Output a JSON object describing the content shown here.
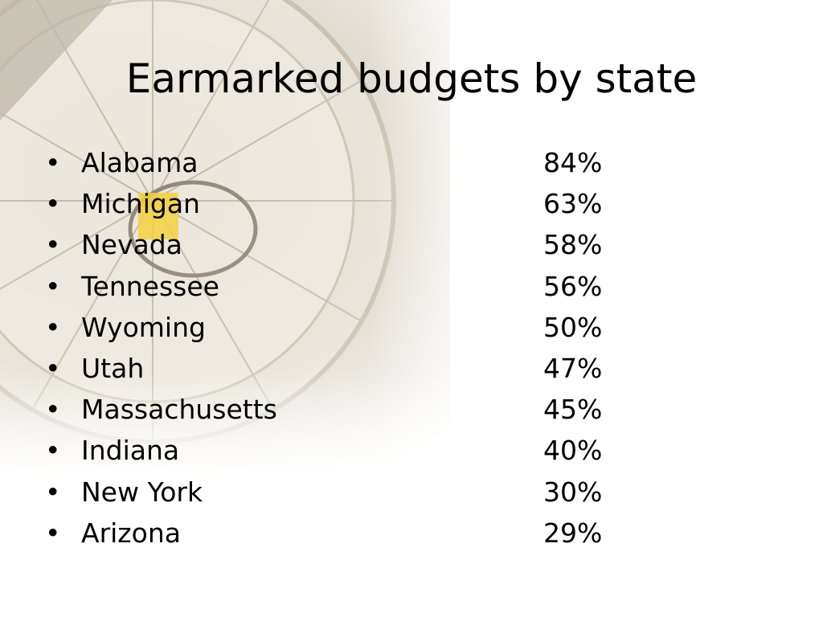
{
  "slide": {
    "title": "Earmarked budgets by state",
    "bullet_glyph": "•",
    "rows": [
      {
        "state": "Alabama",
        "percent": "84%"
      },
      {
        "state": "Michigan",
        "percent": "63%"
      },
      {
        "state": "Nevada",
        "percent": "58%"
      },
      {
        "state": "Tennessee",
        "percent": "56%"
      },
      {
        "state": "Wyoming",
        "percent": "50%"
      },
      {
        "state": "Utah",
        "percent": "47%"
      },
      {
        "state": "Massachusetts",
        "percent": "45%"
      },
      {
        "state": "Indiana",
        "percent": "40%"
      },
      {
        "state": "New York",
        "percent": "30%"
      },
      {
        "state": "Arizona",
        "percent": "29%"
      }
    ]
  },
  "colors": {
    "background": "#ffffff",
    "text": "#000000",
    "art_beige": "#d8d2c4",
    "art_line": "#b9b1a2",
    "art_accent_yellow": "#f2cf3a"
  }
}
